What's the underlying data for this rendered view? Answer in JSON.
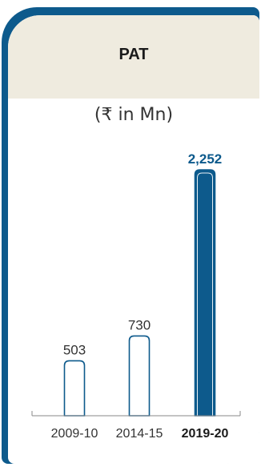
{
  "card": {
    "title": "PAT",
    "unit": "(₹ in Mn)"
  },
  "colors": {
    "accent": "#0d5a8c",
    "header_bg": "#efebdf",
    "bar_outline": "#0d5a8c",
    "bar_fill_light": "#ffffff",
    "text": "#333333"
  },
  "chart_data": {
    "type": "bar",
    "title": "PAT",
    "subtitle": "(₹ in Mn)",
    "categories": [
      "2009-10",
      "2014-15",
      "2019-20"
    ],
    "values": [
      503,
      730,
      2252
    ],
    "value_labels": [
      "503",
      "730",
      "2,252"
    ],
    "highlighted_index": 2,
    "ylim": [
      0,
      2252
    ],
    "grid": false,
    "legend": "none",
    "xlabel": "",
    "ylabel": ""
  }
}
